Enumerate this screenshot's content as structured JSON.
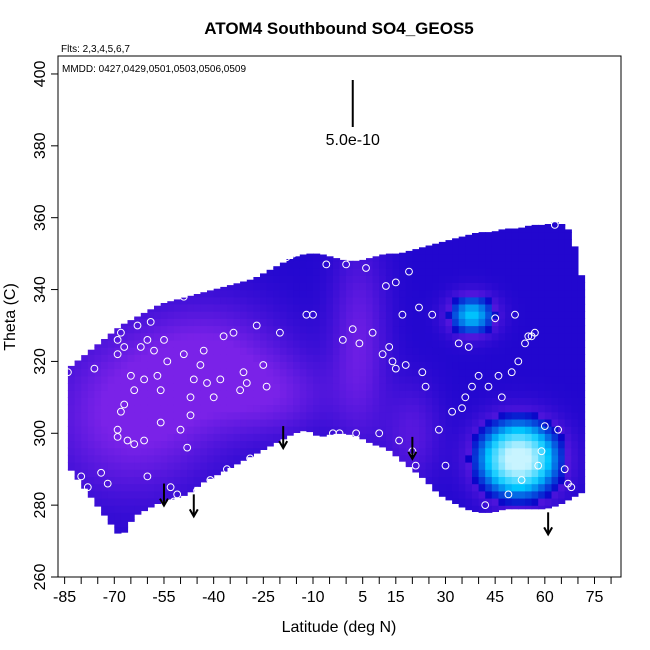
{
  "chart_data": {
    "type": "heatmap",
    "title": "ATOM4 Southbound SO4_GEOS5",
    "flights_note": "Flts: 2,3,4,5,6,7",
    "dates_note": "MMDD: 0427,0429,0501,0503,0506,0509",
    "xlabel": "Latitude (deg N)",
    "ylabel": "Theta (C)",
    "xlim": [
      -87,
      83
    ],
    "ylim": [
      260,
      405
    ],
    "x_ticks": [
      -85,
      -70,
      -55,
      -40,
      -25,
      -10,
      5,
      15,
      30,
      45,
      60,
      75
    ],
    "y_ticks": [
      260,
      280,
      300,
      320,
      340,
      360,
      380,
      400
    ],
    "scale_bar": {
      "label": "5.0e-10",
      "x": 2
    },
    "colors": {
      "low": "#0a00c8",
      "mid": "#7a22e8",
      "high": "#c8f4ff",
      "observation": "#ffffff"
    },
    "envelope": {
      "lat": [
        -84,
        -80,
        -76,
        -72,
        -68,
        -64,
        -60,
        -56,
        -52,
        -48,
        -44,
        -40,
        -36,
        -32,
        -28,
        -24,
        -20,
        -16,
        -12,
        -8,
        -4,
        0,
        4,
        8,
        12,
        16,
        20,
        24,
        28,
        32,
        36,
        40,
        44,
        48,
        52,
        56,
        60,
        64,
        68,
        72
      ],
      "top": [
        318,
        321,
        324,
        327,
        330,
        332,
        334,
        336,
        337,
        338,
        339,
        340,
        341,
        342,
        343,
        345,
        347,
        349,
        350,
        350,
        349,
        348,
        348,
        349,
        350,
        350,
        351,
        352,
        353,
        354,
        355,
        356,
        356,
        357,
        357,
        358,
        358,
        359,
        356,
        340
      ],
      "bottom": [
        291,
        286,
        281,
        276,
        271,
        277,
        279,
        281,
        282,
        283,
        286,
        288,
        290,
        292,
        294,
        296,
        298,
        300,
        301,
        299,
        300,
        300,
        299,
        297,
        296,
        293,
        290,
        287,
        283,
        281,
        279,
        278,
        278,
        279,
        279,
        279,
        279,
        280,
        282,
        284
      ]
    },
    "field_blobs": [
      {
        "lat": -65,
        "theta": 305,
        "sigma_lat": 18,
        "sigma_theta": 16,
        "value": 0.8
      },
      {
        "lat": -40,
        "theta": 320,
        "sigma_lat": 16,
        "sigma_theta": 12,
        "value": 0.7
      },
      {
        "lat": -20,
        "theta": 310,
        "sigma_lat": 12,
        "sigma_theta": 8,
        "value": 0.45
      },
      {
        "lat": 4,
        "theta": 325,
        "sigma_lat": 6,
        "sigma_theta": 20,
        "value": 0.6
      },
      {
        "lat": 20,
        "theta": 300,
        "sigma_lat": 6,
        "sigma_theta": 10,
        "value": 0.45
      },
      {
        "lat": 52,
        "theta": 293,
        "sigma_lat": 8,
        "sigma_theta": 7,
        "value": 2.3
      },
      {
        "lat": 38,
        "theta": 333,
        "sigma_lat": 5,
        "sigma_theta": 4,
        "value": 1.2
      }
    ],
    "arrows": [
      {
        "lat": -55,
        "theta": 286
      },
      {
        "lat": -46,
        "theta": 283
      },
      {
        "lat": -19,
        "theta": 302
      },
      {
        "lat": 20,
        "theta": 299
      },
      {
        "lat": 61,
        "theta": 278
      }
    ],
    "observations": [
      [
        -84,
        317
      ],
      [
        -80,
        288
      ],
      [
        -78,
        285
      ],
      [
        -76,
        318
      ],
      [
        -74,
        289
      ],
      [
        -72,
        286
      ],
      [
        -70,
        331
      ],
      [
        -69,
        326
      ],
      [
        -69,
        322
      ],
      [
        -69,
        301
      ],
      [
        -69,
        299
      ],
      [
        -68,
        306
      ],
      [
        -68,
        328
      ],
      [
        -67,
        308
      ],
      [
        -67,
        324
      ],
      [
        -66,
        298
      ],
      [
        -65,
        316
      ],
      [
        -64,
        312
      ],
      [
        -64,
        297
      ],
      [
        -63,
        330
      ],
      [
        -62,
        324
      ],
      [
        -61,
        315
      ],
      [
        -61,
        298
      ],
      [
        -60,
        326
      ],
      [
        -60,
        288
      ],
      [
        -59,
        331
      ],
      [
        -58,
        323
      ],
      [
        -57,
        316
      ],
      [
        -56,
        312
      ],
      [
        -56,
        303
      ],
      [
        -55,
        326
      ],
      [
        -54,
        320
      ],
      [
        -53,
        285
      ],
      [
        -52,
        281
      ],
      [
        -51,
        283
      ],
      [
        -50,
        301
      ],
      [
        -49,
        338
      ],
      [
        -49,
        322
      ],
      [
        -48,
        296
      ],
      [
        -47,
        310
      ],
      [
        -47,
        305
      ],
      [
        -46,
        315
      ],
      [
        -45,
        284
      ],
      [
        -44,
        319
      ],
      [
        -43,
        323
      ],
      [
        -42,
        314
      ],
      [
        -41,
        287
      ],
      [
        -40,
        310
      ],
      [
        -38,
        315
      ],
      [
        -37,
        327
      ],
      [
        -36,
        290
      ],
      [
        -34,
        328
      ],
      [
        -32,
        312
      ],
      [
        -31,
        317
      ],
      [
        -30,
        314
      ],
      [
        -29,
        293
      ],
      [
        -27,
        330
      ],
      [
        -25,
        319
      ],
      [
        -24,
        313
      ],
      [
        -22,
        295
      ],
      [
        -20,
        328
      ],
      [
        -18,
        349
      ],
      [
        -16,
        350
      ],
      [
        -12,
        333
      ],
      [
        -10,
        333
      ],
      [
        -6,
        347
      ],
      [
        -4,
        300
      ],
      [
        -2,
        300
      ],
      [
        -1,
        326
      ],
      [
        0,
        347
      ],
      [
        2,
        329
      ],
      [
        3,
        300
      ],
      [
        4,
        325
      ],
      [
        6,
        346
      ],
      [
        8,
        328
      ],
      [
        10,
        300
      ],
      [
        11,
        322
      ],
      [
        12,
        341
      ],
      [
        13,
        324
      ],
      [
        14,
        320
      ],
      [
        15,
        318
      ],
      [
        15,
        342
      ],
      [
        16,
        298
      ],
      [
        17,
        333
      ],
      [
        18,
        319
      ],
      [
        19,
        345
      ],
      [
        20,
        295
      ],
      [
        21,
        291
      ],
      [
        22,
        335
      ],
      [
        23,
        317
      ],
      [
        24,
        313
      ],
      [
        26,
        333
      ],
      [
        28,
        301
      ],
      [
        30,
        291
      ],
      [
        32,
        306
      ],
      [
        34,
        325
      ],
      [
        35,
        307
      ],
      [
        36,
        310
      ],
      [
        37,
        324
      ],
      [
        38,
        313
      ],
      [
        40,
        316
      ],
      [
        42,
        280
      ],
      [
        43,
        313
      ],
      [
        45,
        332
      ],
      [
        46,
        316
      ],
      [
        47,
        310
      ],
      [
        49,
        283
      ],
      [
        50,
        317
      ],
      [
        51,
        333
      ],
      [
        52,
        320
      ],
      [
        53,
        287
      ],
      [
        54,
        325
      ],
      [
        55,
        327
      ],
      [
        56,
        327
      ],
      [
        57,
        328
      ],
      [
        58,
        291
      ],
      [
        59,
        295
      ],
      [
        60,
        302
      ],
      [
        63,
        358
      ],
      [
        64,
        301
      ],
      [
        66,
        290
      ],
      [
        67,
        286
      ],
      [
        68,
        285
      ]
    ]
  }
}
